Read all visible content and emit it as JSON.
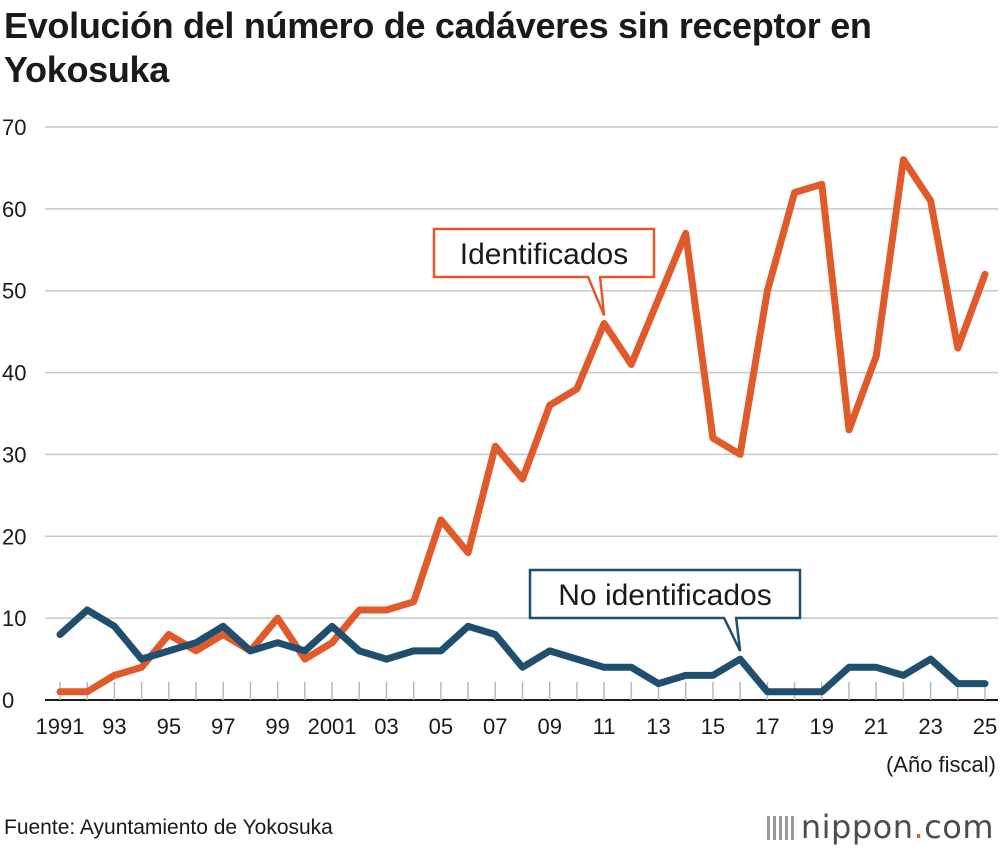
{
  "chart_data": {
    "type": "line",
    "title": "Evolución del número de cadáveres sin receptor en Yokosuka",
    "x_unit_label": "(Año fiscal)",
    "x": [
      1991,
      1992,
      1993,
      1994,
      1995,
      1996,
      1997,
      1998,
      1999,
      2000,
      2001,
      2002,
      2003,
      2004,
      2005,
      2006,
      2007,
      2008,
      2009,
      2010,
      2011,
      2012,
      2013,
      2014,
      2015,
      2016,
      2017,
      2018,
      2019,
      2020,
      2021,
      2022,
      2023,
      2024,
      2025
    ],
    "x_tick_labels": [
      {
        "x": 1991,
        "label": "1991"
      },
      {
        "x": 1993,
        "label": "93"
      },
      {
        "x": 1995,
        "label": "95"
      },
      {
        "x": 1997,
        "label": "97"
      },
      {
        "x": 1999,
        "label": "99"
      },
      {
        "x": 2001,
        "label": "2001"
      },
      {
        "x": 2003,
        "label": "03"
      },
      {
        "x": 2005,
        "label": "05"
      },
      {
        "x": 2007,
        "label": "07"
      },
      {
        "x": 2009,
        "label": "09"
      },
      {
        "x": 2011,
        "label": "11"
      },
      {
        "x": 2013,
        "label": "13"
      },
      {
        "x": 2015,
        "label": "15"
      },
      {
        "x": 2017,
        "label": "17"
      },
      {
        "x": 2019,
        "label": "19"
      },
      {
        "x": 2021,
        "label": "21"
      },
      {
        "x": 2023,
        "label": "23"
      },
      {
        "x": 2025,
        "label": "25"
      }
    ],
    "y_ticks": [
      0,
      10,
      20,
      30,
      40,
      50,
      60,
      70
    ],
    "ylim": [
      0,
      70
    ],
    "grid": true,
    "series": [
      {
        "name": "Identificados",
        "color": "#e05a2b",
        "values": [
          1,
          1,
          3,
          4,
          8,
          6,
          8,
          6,
          10,
          5,
          7,
          11,
          11,
          12,
          22,
          18,
          31,
          27,
          36,
          38,
          46,
          41,
          49,
          57,
          32,
          30,
          50,
          62,
          63,
          33,
          42,
          66,
          61,
          43,
          52
        ],
        "callout_anchor_x": 2011
      },
      {
        "name": "No identificados",
        "color": "#1f4e6e",
        "values": [
          8,
          11,
          9,
          5,
          6,
          7,
          9,
          6,
          7,
          6,
          9,
          6,
          5,
          6,
          6,
          9,
          8,
          4,
          6,
          5,
          4,
          4,
          2,
          3,
          3,
          5,
          1,
          1,
          1,
          4,
          4,
          3,
          5,
          2,
          2
        ],
        "callout_anchor_x": 2016
      }
    ]
  },
  "footer": {
    "source": "Fuente: Ayuntamiento de Yokosuka",
    "logo_main": "nippon",
    "logo_dot": ".",
    "logo_suffix": "com"
  }
}
